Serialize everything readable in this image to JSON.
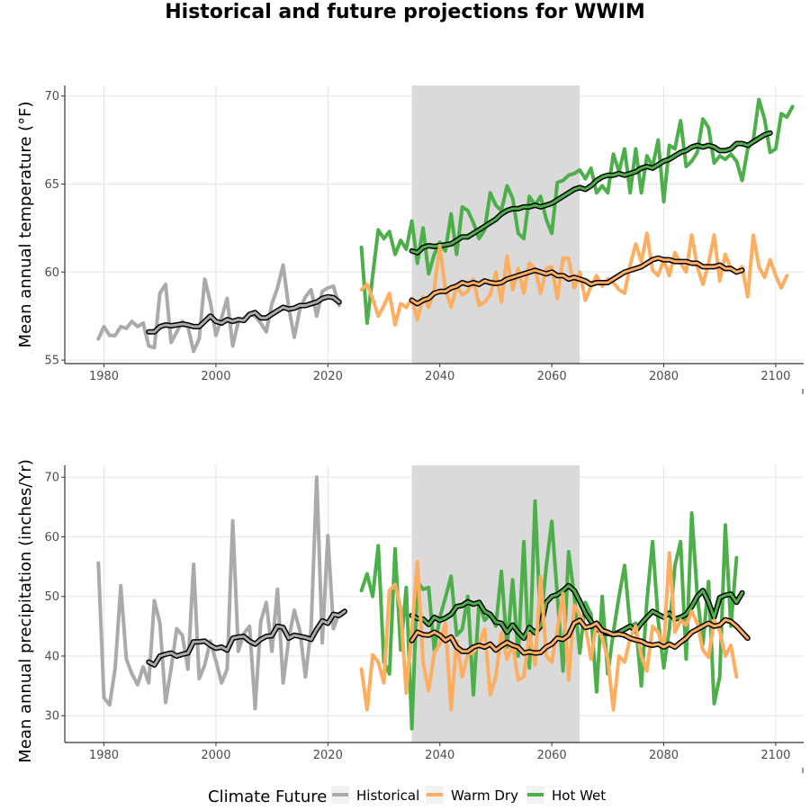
{
  "title": "Historical and future projections for WWIM",
  "legend": {
    "title": "Climate Future",
    "items": [
      {
        "label": "Historical",
        "color": "#aaaaaa"
      },
      {
        "label": "Warm Dry",
        "color": "#fdae61"
      },
      {
        "label": "Hot Wet",
        "color": "#4daf4a"
      }
    ]
  },
  "chart_data": [
    {
      "type": "line",
      "ylabel": "Mean annual temperature (°F)",
      "xlim": [
        1973,
        2105
      ],
      "ylim": [
        54.8,
        70.6
      ],
      "x_ticks": [
        1980,
        2000,
        2020,
        2040,
        2060,
        2080,
        2100
      ],
      "y_ticks": [
        55,
        60,
        65,
        70
      ],
      "grid": true,
      "shaded_period": [
        2035,
        2065
      ],
      "series": [
        {
          "name": "Historical",
          "color": "#aaaaaa",
          "start": 1979,
          "values": [
            56.2,
            56.9,
            56.4,
            56.4,
            56.9,
            56.8,
            57.2,
            56.9,
            57.1,
            55.8,
            55.7,
            58.8,
            59.3,
            56.0,
            56.6,
            57.2,
            56.9,
            55.5,
            56.2,
            59.6,
            58.3,
            56.4,
            57.4,
            58.5,
            55.8,
            57.2,
            57.3,
            57.6,
            57.5,
            57.1,
            56.6,
            58.2,
            59.1,
            60.4,
            58.0,
            56.3,
            57.9,
            58.6,
            59.0,
            57.5,
            58.9,
            59.1,
            59.2,
            58.1
          ]
        },
        {
          "name": "Historical 10-yr mean",
          "color": "#000000",
          "smooth": true,
          "start": 1988,
          "values": [
            56.6,
            56.6,
            56.9,
            57.0,
            56.95,
            57.0,
            57.05,
            57.0,
            56.9,
            56.9,
            57.2,
            57.5,
            57.2,
            57.1,
            57.3,
            57.2,
            57.3,
            57.25,
            57.6,
            57.7,
            57.4,
            57.4,
            57.6,
            57.8,
            58.0,
            57.9,
            57.95,
            58.1,
            58.1,
            58.2,
            58.3,
            58.5,
            58.6,
            58.55,
            58.3
          ]
        },
        {
          "name": "Hot Wet",
          "color": "#4daf4a",
          "start": 2026,
          "values": [
            61.4,
            57.1,
            59.8,
            62.4,
            61.9,
            62.3,
            61.0,
            61.8,
            61.3,
            62.9,
            60.5,
            62.5,
            59.9,
            61.0,
            61.7,
            61.2,
            63.3,
            61.0,
            63.7,
            63.5,
            62.8,
            61.9,
            62.4,
            64.5,
            63.8,
            63.5,
            64.9,
            64.2,
            62.2,
            61.9,
            64.3,
            63.8,
            64.3,
            63.0,
            62.2,
            65.1,
            65.2,
            65.5,
            65.6,
            65.8,
            65.3,
            65.9,
            64.5,
            64.9,
            64.5,
            66.7,
            65.7,
            67.0,
            64.5,
            67.0,
            64.5,
            66.6,
            66.0,
            67.5,
            64.0,
            67.2,
            67.0,
            68.6,
            66.0,
            66.3,
            66.8,
            68.7,
            68.2,
            66.2,
            66.6,
            66.4,
            66.7,
            66.3,
            65.2,
            67.0,
            67.5,
            69.8,
            68.7,
            66.8,
            67.0,
            69.0,
            68.8,
            69.4
          ]
        },
        {
          "name": "Hot Wet 10-yr mean",
          "color": "#000000",
          "smooth": true,
          "start": 2035,
          "values": [
            61.2,
            61.1,
            61.4,
            61.5,
            61.45,
            61.5,
            61.55,
            61.6,
            61.8,
            62.0,
            62.0,
            62.2,
            62.4,
            62.6,
            62.8,
            63.0,
            63.3,
            63.5,
            63.6,
            63.6,
            63.7,
            63.7,
            63.8,
            63.7,
            63.8,
            63.9,
            64.1,
            64.3,
            64.5,
            64.7,
            64.8,
            64.7,
            64.9,
            65.2,
            65.4,
            65.5,
            65.5,
            65.6,
            65.5,
            65.6,
            65.7,
            65.9,
            66.0,
            65.9,
            66.1,
            66.3,
            66.4,
            66.6,
            66.8,
            66.9,
            67.1,
            67.2,
            67.1,
            67.2,
            67.1,
            66.9,
            66.9,
            67.0,
            67.3,
            67.3,
            67.2,
            67.4,
            67.6,
            67.8,
            67.9
          ]
        },
        {
          "name": "Warm Dry",
          "color": "#fdae61",
          "start": 2026,
          "values": [
            59.0,
            59.3,
            58.5,
            57.5,
            58.1,
            58.8,
            57.0,
            58.2,
            58.0,
            58.5,
            57.3,
            58.6,
            58.0,
            59.0,
            61.5,
            59.0,
            58.0,
            59.2,
            58.7,
            58.9,
            59.6,
            58.1,
            58.3,
            58.7,
            60.0,
            58.3,
            60.9,
            59.0,
            60.2,
            58.8,
            60.5,
            60.2,
            58.8,
            60.2,
            60.3,
            58.5,
            60.8,
            60.8,
            59.1,
            60.0,
            58.4,
            59.2,
            59.8,
            59.2,
            59.6,
            59.4,
            59.0,
            58.8,
            60.4,
            61.6,
            60.6,
            62.2,
            60.1,
            59.8,
            60.7,
            59.8,
            61.1,
            60.5,
            60.0,
            62.1,
            60.3,
            59.3,
            60.5,
            62.1,
            59.5,
            61.0,
            60.2,
            60.0,
            60.3,
            58.6,
            62.1,
            60.3,
            59.7,
            60.7,
            59.8,
            59.1,
            59.8
          ]
        },
        {
          "name": "Warm Dry 10-yr mean",
          "color": "#000000",
          "smooth": true,
          "start": 2035,
          "values": [
            58.4,
            58.2,
            58.4,
            58.5,
            58.8,
            58.9,
            58.9,
            59.1,
            59.2,
            59.4,
            59.3,
            59.4,
            59.3,
            59.5,
            59.4,
            59.35,
            59.4,
            59.6,
            59.7,
            59.8,
            59.9,
            60.0,
            60.1,
            60.0,
            59.9,
            60.0,
            59.8,
            59.8,
            59.6,
            59.7,
            59.6,
            59.5,
            59.3,
            59.4,
            59.4,
            59.4,
            59.6,
            59.8,
            60.0,
            60.1,
            60.2,
            60.3,
            60.5,
            60.7,
            60.8,
            60.7,
            60.7,
            60.6,
            60.6,
            60.6,
            60.5,
            60.5,
            60.3,
            60.3,
            60.3,
            60.4,
            60.2,
            60.2,
            60.0,
            60.1
          ]
        }
      ]
    },
    {
      "type": "line",
      "ylabel": "Mean annual precipitation (inches/Yr)",
      "xlim": [
        1973,
        2105
      ],
      "ylim": [
        25.5,
        72
      ],
      "x_ticks": [
        1980,
        2000,
        2020,
        2040,
        2060,
        2080,
        2100
      ],
      "y_ticks": [
        30,
        40,
        50,
        60,
        70
      ],
      "grid": true,
      "shaded_period": [
        2035,
        2065
      ],
      "series": [
        {
          "name": "Historical",
          "color": "#aaaaaa",
          "start": 1979,
          "values": [
            55.6,
            33.0,
            31.8,
            38.0,
            51.8,
            39.5,
            37.0,
            35.2,
            38.2,
            35.5,
            49.3,
            45.5,
            32.2,
            38.0,
            44.6,
            43.5,
            37.8,
            55.4,
            36.2,
            38.5,
            42.5,
            39.2,
            35.5,
            37.8,
            62.7,
            40.8,
            43.8,
            45.0,
            31.2,
            45.8,
            49.0,
            40.8,
            51.2,
            35.5,
            42.8,
            47.7,
            44.2,
            36.5,
            44.7,
            70.0,
            42.2,
            60.2,
            44.6,
            47.2
          ]
        },
        {
          "name": "Historical 10-yr mean",
          "color": "#000000",
          "smooth": true,
          "start": 1988,
          "values": [
            39.0,
            38.5,
            40.0,
            40.3,
            40.5,
            40.0,
            40.3,
            40.5,
            42.4,
            42.4,
            42.5,
            41.8,
            41.3,
            41.5,
            41.0,
            43.0,
            43.2,
            43.3,
            42.5,
            42.0,
            42.8,
            43.3,
            43.4,
            45.0,
            44.8,
            43.0,
            43.5,
            43.3,
            43.1,
            42.8,
            44.5,
            45.9,
            45.5,
            47.0,
            46.8,
            47.5
          ]
        },
        {
          "name": "Hot Wet",
          "color": "#4daf4a",
          "start": 2026,
          "values": [
            51.0,
            53.8,
            50.0,
            58.5,
            39.0,
            37.0,
            58.0,
            41.0,
            51.5,
            27.8,
            52.5,
            51.2,
            51.5,
            41.0,
            46.5,
            49.8,
            53.4,
            43.5,
            44.5,
            50.0,
            33.5,
            49.0,
            46.0,
            47.0,
            45.0,
            54.2,
            41.5,
            52.8,
            40.0,
            59.2,
            38.0,
            66.0,
            45.0,
            55.0,
            62.6,
            50.0,
            37.5,
            57.5,
            50.2,
            40.5,
            49.0,
            47.0,
            34.0,
            50.0,
            37.0,
            44.0,
            50.0,
            55.2,
            45.0,
            45.5,
            35.0,
            49.3,
            59.2,
            46.0,
            38.0,
            44.5,
            55.2,
            59.2,
            39.5,
            64.0,
            50.0,
            42.0,
            52.5,
            32.0,
            36.5,
            62.0,
            45.0,
            56.5
          ]
        },
        {
          "name": "Hot Wet 10-yr mean",
          "color": "#000000",
          "smooth": true,
          "start": 2035,
          "values": [
            46.8,
            46.3,
            46.2,
            45.3,
            46.5,
            46.0,
            46.4,
            47.0,
            48.3,
            48.5,
            49.1,
            48.7,
            49.0,
            47.5,
            47.0,
            45.7,
            45.5,
            44.0,
            45.2,
            44.0,
            43.0,
            44.8,
            43.9,
            45.0,
            49.0,
            50.0,
            50.3,
            51.0,
            51.8,
            51.0,
            49.2,
            47.2,
            45.8,
            44.6,
            44.0,
            43.8,
            43.6,
            44.0,
            44.5,
            45.0,
            44.2,
            45.5,
            46.5,
            47.5,
            47.0,
            46.5,
            47.2,
            46.2,
            46.5,
            47.0,
            48.3,
            50.0,
            51.0,
            49.0,
            46.5,
            49.8,
            50.2,
            50.4,
            49.0,
            50.6
          ]
        },
        {
          "name": "Warm Dry",
          "color": "#fdae61",
          "start": 2026,
          "values": [
            37.8,
            31.0,
            40.2,
            39.0,
            35.5,
            51.0,
            52.0,
            48.0,
            33.8,
            44.4,
            55.8,
            39.0,
            34.2,
            40.5,
            42.0,
            45.5,
            31.0,
            42.5,
            36.5,
            40.3,
            40.6,
            42.0,
            44.5,
            33.5,
            36.5,
            44.0,
            39.5,
            42.0,
            36.0,
            36.5,
            43.8,
            38.5,
            53.3,
            40.0,
            39.0,
            44.5,
            50.5,
            36.0,
            48.5,
            47.0,
            45.0,
            39.5,
            45.7,
            43.0,
            39.5,
            31.0,
            40.0,
            39.0,
            43.0,
            45.0,
            40.0,
            37.5,
            45.0,
            44.0,
            41.5,
            57.3,
            44.0,
            46.0,
            45.2,
            47.5,
            45.5,
            41.0,
            39.8,
            46.0,
            44.2,
            40.0,
            41.8,
            36.5
          ]
        },
        {
          "name": "Warm Dry 10-yr mean",
          "color": "#000000",
          "smooth": true,
          "start": 2035,
          "values": [
            42.6,
            44.0,
            43.6,
            43.5,
            44.0,
            43.5,
            42.6,
            43.2,
            41.5,
            40.8,
            40.8,
            41.5,
            41.8,
            41.5,
            42.0,
            41.0,
            41.7,
            42.3,
            41.8,
            41.5,
            40.5,
            40.7,
            40.5,
            40.6,
            41.5,
            42.0,
            43.0,
            42.8,
            43.5,
            45.5,
            46.0,
            44.8,
            45.0,
            45.5,
            44.3,
            44.0,
            43.6,
            43.7,
            43.5,
            43.0,
            42.7,
            42.5,
            42.0,
            41.8,
            42.0,
            41.5,
            42.0,
            41.5,
            42.3,
            43.0,
            44.0,
            44.5,
            45.0,
            45.5,
            45.0,
            45.2,
            46.1,
            45.8,
            45.0,
            44.0,
            43.0
          ]
        }
      ]
    }
  ]
}
